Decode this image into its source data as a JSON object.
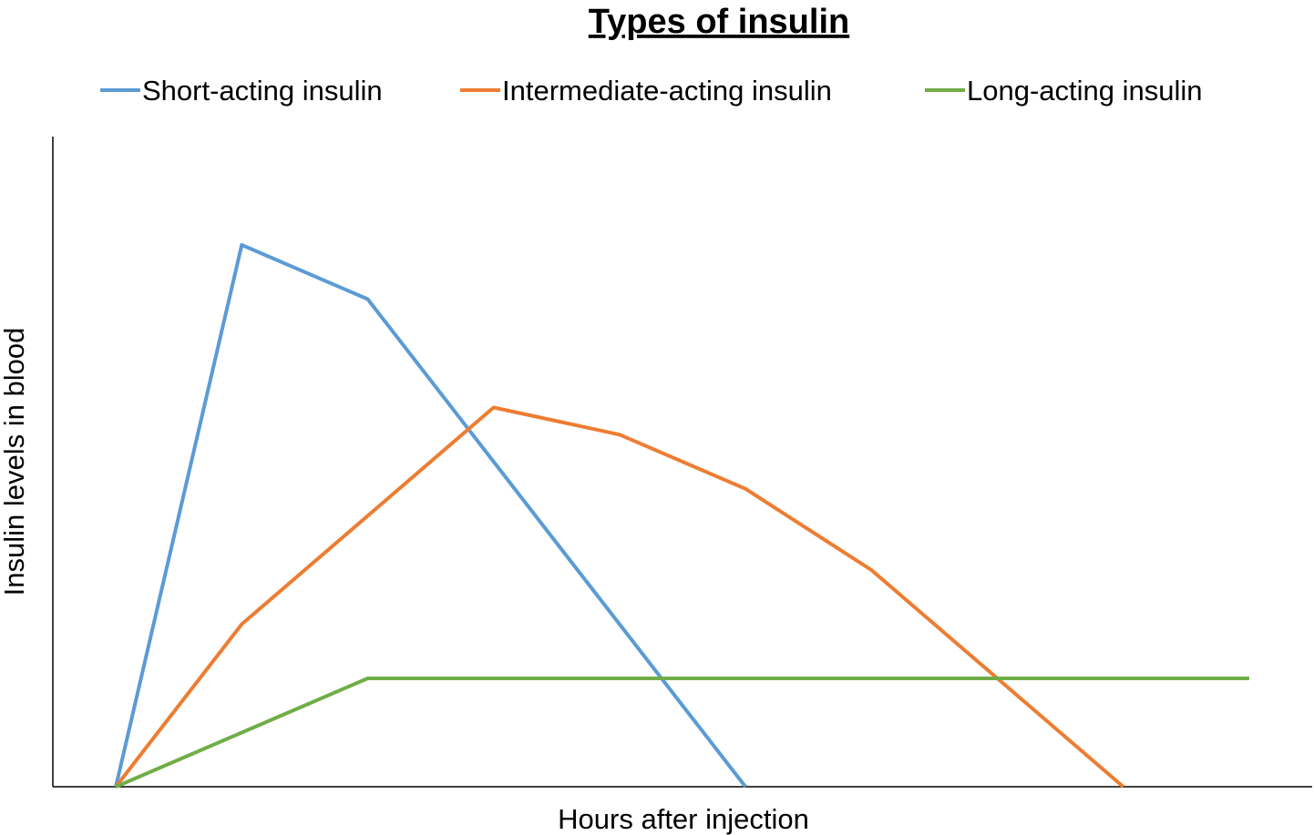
{
  "chart_data": {
    "type": "line",
    "title": "Types of insulin",
    "xlabel": "Hours after injection",
    "ylabel": "Insulin levels in blood",
    "x": [
      0,
      1,
      2,
      3,
      4,
      5,
      6,
      7,
      8,
      9
    ],
    "xlim": [
      -0.5,
      9.5
    ],
    "ylim": [
      0,
      12
    ],
    "grid": false,
    "legend_position": "top",
    "series": [
      {
        "name": "Short-acting insulin",
        "color": "#5B9BD5",
        "values": [
          0,
          10,
          9,
          6,
          3,
          0,
          null,
          null,
          null,
          null
        ]
      },
      {
        "name": "Intermediate-acting insulin",
        "color": "#ED7D31",
        "values": [
          0,
          3,
          5,
          7,
          6.5,
          5.5,
          4,
          2,
          0,
          null
        ]
      },
      {
        "name": "Long-acting insulin",
        "color": "#70AD47",
        "values": [
          0,
          1,
          2,
          2,
          2,
          2,
          2,
          2,
          2,
          2
        ]
      }
    ]
  }
}
